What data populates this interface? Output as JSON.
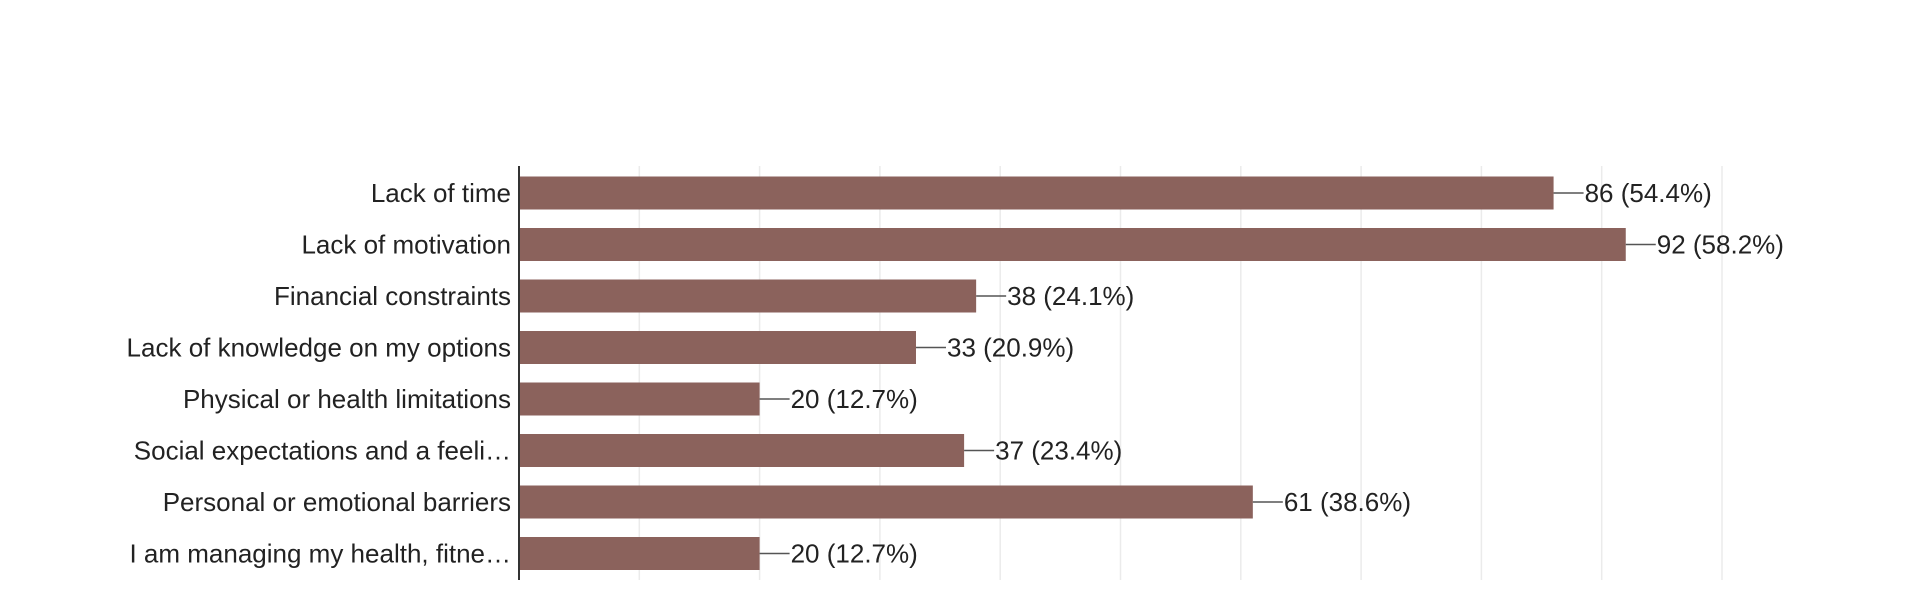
{
  "chart_data": {
    "type": "bar",
    "orientation": "horizontal",
    "categories": [
      "Lack of time",
      "Lack of motivation",
      "Financial constraints",
      "Lack of knowledge on my options",
      "Physical or health limitations",
      "Social expectations and a feeli…",
      "Personal or emotional barriers",
      "I am managing my health, fitne…"
    ],
    "values": [
      86,
      92,
      38,
      33,
      20,
      37,
      61,
      20
    ],
    "data_labels": [
      "86 (54.4%)",
      "92 (58.2%)",
      "38 (24.1%)",
      "33 (20.9%)",
      "20 (12.7%)",
      "37 (23.4%)",
      "61 (38.6%)",
      "20 (12.7%)"
    ],
    "xlim": [
      0,
      100
    ],
    "grid": true,
    "legend": "none",
    "bar_color": "#8b625c",
    "title": "",
    "xlabel": "",
    "ylabel": ""
  }
}
